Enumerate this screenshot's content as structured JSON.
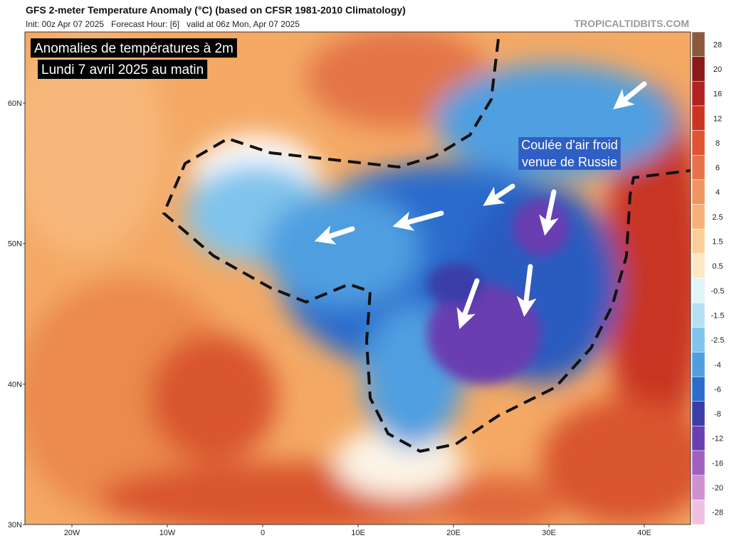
{
  "header": {
    "title": "GFS 2-meter Temperature Anomaly (°C) (based on CFSR 1981-2010 Climatology)",
    "subtitle": "Init: 00z Apr 07 2025   Forecast Hour: [6]   valid at 06z Mon, Apr 07 2025",
    "credit": "TROPICALTIDBITS.COM"
  },
  "overlay": {
    "lines": [
      "Anomalies de températures à 2m",
      "Lundi 7 avril 2025 au matin"
    ]
  },
  "annotation": {
    "lines": [
      "Coulée d'air froid",
      "venue de Russie"
    ]
  },
  "map": {
    "lat_labels": [
      "60N",
      "50N",
      "40N",
      "30N"
    ],
    "lon_labels": [
      "20W",
      "10W",
      "0",
      "10E",
      "20E",
      "30E",
      "40E"
    ]
  },
  "colorbar": {
    "labels": [
      "28",
      "20",
      "16",
      "12",
      "8",
      "6",
      "4",
      "2.5",
      "1.5",
      "0.5",
      "-0.5",
      "-1.5",
      "-2.5",
      "-4",
      "-6",
      "-8",
      "-12",
      "-16",
      "-20",
      "-28"
    ]
  }
}
